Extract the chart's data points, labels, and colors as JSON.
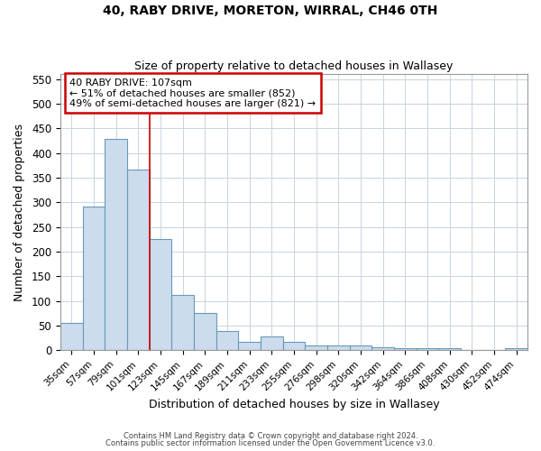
{
  "title1": "40, RABY DRIVE, MORETON, WIRRAL, CH46 0TH",
  "title2": "Size of property relative to detached houses in Wallasey",
  "xlabel": "Distribution of detached houses by size in Wallasey",
  "ylabel": "Number of detached properties",
  "categories": [
    "35sqm",
    "57sqm",
    "79sqm",
    "101sqm",
    "123sqm",
    "145sqm",
    "167sqm",
    "189sqm",
    "211sqm",
    "233sqm",
    "255sqm",
    "276sqm",
    "298sqm",
    "320sqm",
    "342sqm",
    "364sqm",
    "386sqm",
    "408sqm",
    "430sqm",
    "452sqm",
    "474sqm"
  ],
  "values": [
    55,
    292,
    428,
    367,
    225,
    113,
    76,
    39,
    17,
    28,
    17,
    10,
    10,
    10,
    6,
    5,
    5,
    5,
    0,
    0,
    4
  ],
  "bar_color": "#ccdcec",
  "bar_edge_color": "#6699bb",
  "vline_index": 3.5,
  "vline_color": "#cc0000",
  "annotation_line1": "40 RABY DRIVE: 107sqm",
  "annotation_line2": "← 51% of detached houses are smaller (852)",
  "annotation_line3": "49% of semi-detached houses are larger (821) →",
  "annotation_box_edge": "#cc0000",
  "ylim": [
    0,
    560
  ],
  "yticks": [
    0,
    50,
    100,
    150,
    200,
    250,
    300,
    350,
    400,
    450,
    500,
    550
  ],
  "footnote1": "Contains HM Land Registry data © Crown copyright and database right 2024.",
  "footnote2": "Contains public sector information licensed under the Open Government Licence v3.0.",
  "bg_color": "#ffffff",
  "plot_bg_color": "#ffffff",
  "grid_color": "#c8d4e0"
}
